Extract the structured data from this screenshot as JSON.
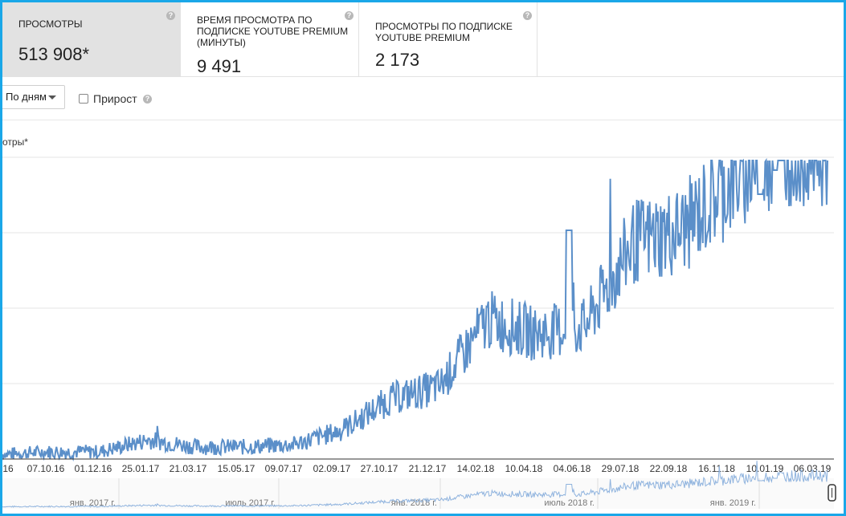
{
  "cards": [
    {
      "title": "ПРОСМОТРЫ",
      "value": "513 908*"
    },
    {
      "title": "ВРЕМЯ ПРОСМОТРА ПО ПОДПИСКЕ YOUTUBE PREMIUM (МИНУТЫ)",
      "value": "9 491"
    },
    {
      "title": "ПРОСМОТРЫ ПО ПОДПИСКЕ YOUTUBE PREMIUM",
      "value": "2 173"
    }
  ],
  "help_glyph": "?",
  "toolbar": {
    "granularity": "По дням",
    "growth_label": "Прирост",
    "growth_checked": false
  },
  "chart_data": {
    "type": "line",
    "ylabel": "отры*",
    "color": "#5b8fc9",
    "x_ticks": [
      "16",
      "07.10.16",
      "01.12.16",
      "25.01.17",
      "21.03.17",
      "15.05.17",
      "09.07.17",
      "02.09.17",
      "27.10.17",
      "21.12.17",
      "14.02.18",
      "10.04.18",
      "04.06.18",
      "29.07.18",
      "22.09.18",
      "16.11.18",
      "10.01.19",
      "06.03.19"
    ],
    "series": [
      {
        "x": [
          "16",
          "07.10.16",
          "01.12.16",
          "25.01.17",
          "21.03.17",
          "15.05.17",
          "09.07.17",
          "02.09.17",
          "27.10.17",
          "21.12.17",
          "14.02.18",
          "10.04.18",
          "04.06.18",
          "29.07.18",
          "22.09.18",
          "16.11.18",
          "10.01.19",
          "06.03.19"
        ],
        "values": [
          0.02,
          0.03,
          0.03,
          0.08,
          0.05,
          0.05,
          0.06,
          0.12,
          0.25,
          0.3,
          0.58,
          0.52,
          0.55,
          0.9,
          0.95,
          1.15,
          1.3,
          1.3
        ]
      }
    ],
    "navigator_ticks": [
      "янв. 2017 г.",
      "июль 2017 г.",
      "янв. 2018 г.",
      "июль 2018 г.",
      "янв. 2019 г."
    ]
  }
}
